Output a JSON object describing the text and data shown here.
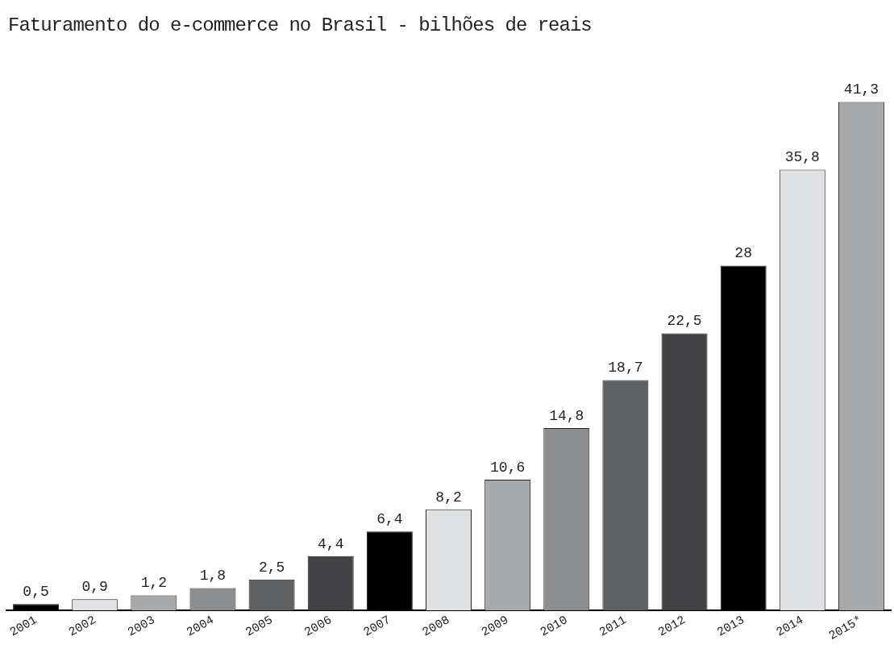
{
  "chart_data": {
    "type": "bar",
    "title": "Faturamento do e-commerce no Brasil - bilhões de reais",
    "categories": [
      "2001",
      "2002",
      "2003",
      "2004",
      "2005",
      "2006",
      "2007",
      "2008",
      "2009",
      "2010",
      "2011",
      "2012",
      "2013",
      "2014",
      "2015*"
    ],
    "values": [
      0.5,
      0.9,
      1.2,
      1.8,
      2.5,
      4.4,
      6.4,
      8.2,
      10.6,
      14.8,
      18.7,
      22.5,
      28,
      35.8,
      41.3
    ],
    "value_labels": [
      "0,5",
      "0,9",
      "1,2",
      "1,8",
      "2,5",
      "4,4",
      "6,4",
      "8,2",
      "10,6",
      "14,8",
      "18,7",
      "22,5",
      "28",
      "35,8",
      "41,3"
    ],
    "colors": [
      "#000000",
      "#e0e1e3",
      "#a8a9ab",
      "#8d8e90",
      "#5f6163",
      "#434346",
      "#000000",
      "#e0e1e3",
      "#a8a9ab",
      "#8d8e90",
      "#5f6163",
      "#434346",
      "#000000",
      "#e0e1e3",
      "#a8a9ab"
    ],
    "grid": false,
    "legend": false
  }
}
